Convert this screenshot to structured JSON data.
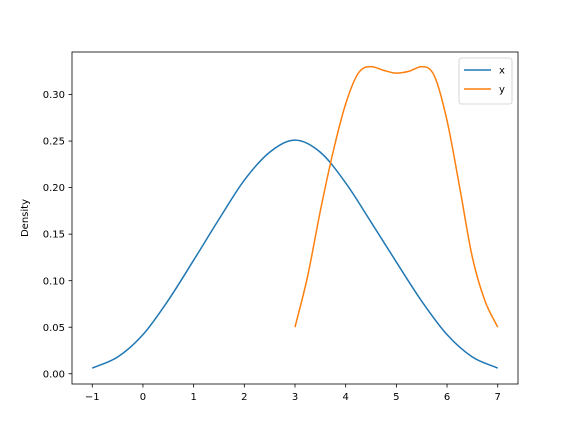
{
  "chart_data": {
    "type": "line",
    "title": "",
    "xlabel": "",
    "ylabel": "Density",
    "xlim": [
      -1.4,
      7.4
    ],
    "ylim": [
      -0.011,
      0.3457
    ],
    "xticks": [
      -1,
      0,
      1,
      2,
      3,
      4,
      5,
      6,
      7
    ],
    "xtick_labels": [
      "−1",
      "0",
      "1",
      "2",
      "3",
      "4",
      "5",
      "6",
      "7"
    ],
    "yticks": [
      0.0,
      0.05,
      0.1,
      0.15,
      0.2,
      0.25,
      0.3
    ],
    "ytick_labels": [
      "0.00",
      "0.05",
      "0.10",
      "0.15",
      "0.20",
      "0.25",
      "0.30"
    ],
    "grid": false,
    "legend_position": "upper right",
    "series": [
      {
        "name": "x",
        "color": "#1f77b4",
        "x": [
          -1,
          -0.5,
          0,
          0.5,
          1,
          1.5,
          2,
          2.5,
          3,
          3.5,
          4,
          4.5,
          5,
          5.5,
          6,
          6.5,
          7
        ],
        "y": [
          0.006,
          0.018,
          0.042,
          0.079,
          0.122,
          0.166,
          0.208,
          0.238,
          0.251,
          0.238,
          0.205,
          0.163,
          0.12,
          0.078,
          0.042,
          0.018,
          0.006
        ]
      },
      {
        "name": "y",
        "color": "#ff7f0e",
        "x": [
          3,
          3.25,
          3.5,
          3.75,
          4,
          4.25,
          4.5,
          4.75,
          5,
          5.25,
          5.5,
          5.75,
          6,
          6.25,
          6.5,
          6.75,
          7
        ],
        "y": [
          0.05,
          0.105,
          0.175,
          0.238,
          0.29,
          0.323,
          0.33,
          0.326,
          0.323,
          0.325,
          0.33,
          0.32,
          0.272,
          0.2,
          0.125,
          0.078,
          0.05
        ]
      }
    ]
  }
}
